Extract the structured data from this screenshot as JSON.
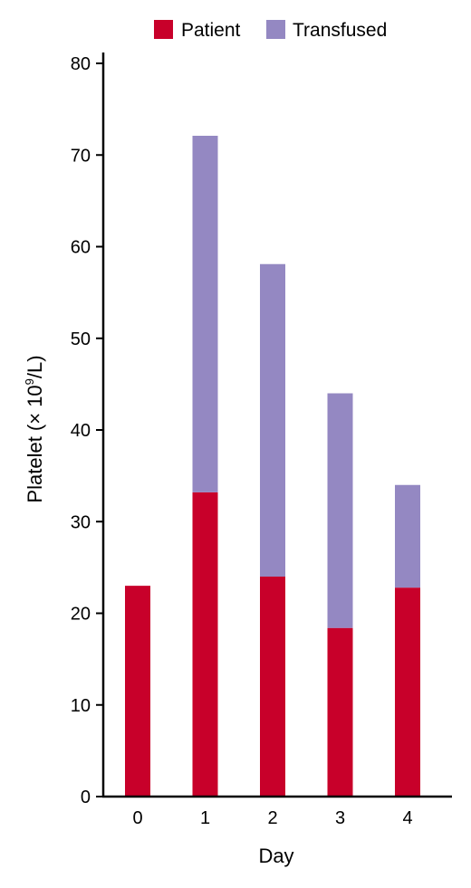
{
  "chart_data": {
    "type": "bar",
    "stacked": true,
    "categories": [
      "0",
      "1",
      "2",
      "3",
      "4"
    ],
    "series": [
      {
        "name": "Patient",
        "color": "#c8002a",
        "values": [
          23,
          33.2,
          24,
          18.4,
          22.8
        ]
      },
      {
        "name": "Transfused",
        "color": "#9488c2",
        "values": [
          0,
          38.9,
          34.1,
          25.6,
          11.2
        ]
      }
    ],
    "xlabel": "Day",
    "ylabel": {
      "prefix": "Platelet (× 10",
      "sup": "9",
      "suffix": "/L)"
    },
    "ylim": [
      0,
      80
    ],
    "yticks": [
      "0",
      "10",
      "20",
      "30",
      "40",
      "50",
      "60",
      "70",
      "80"
    ],
    "grid": false,
    "legend_position": "top"
  }
}
